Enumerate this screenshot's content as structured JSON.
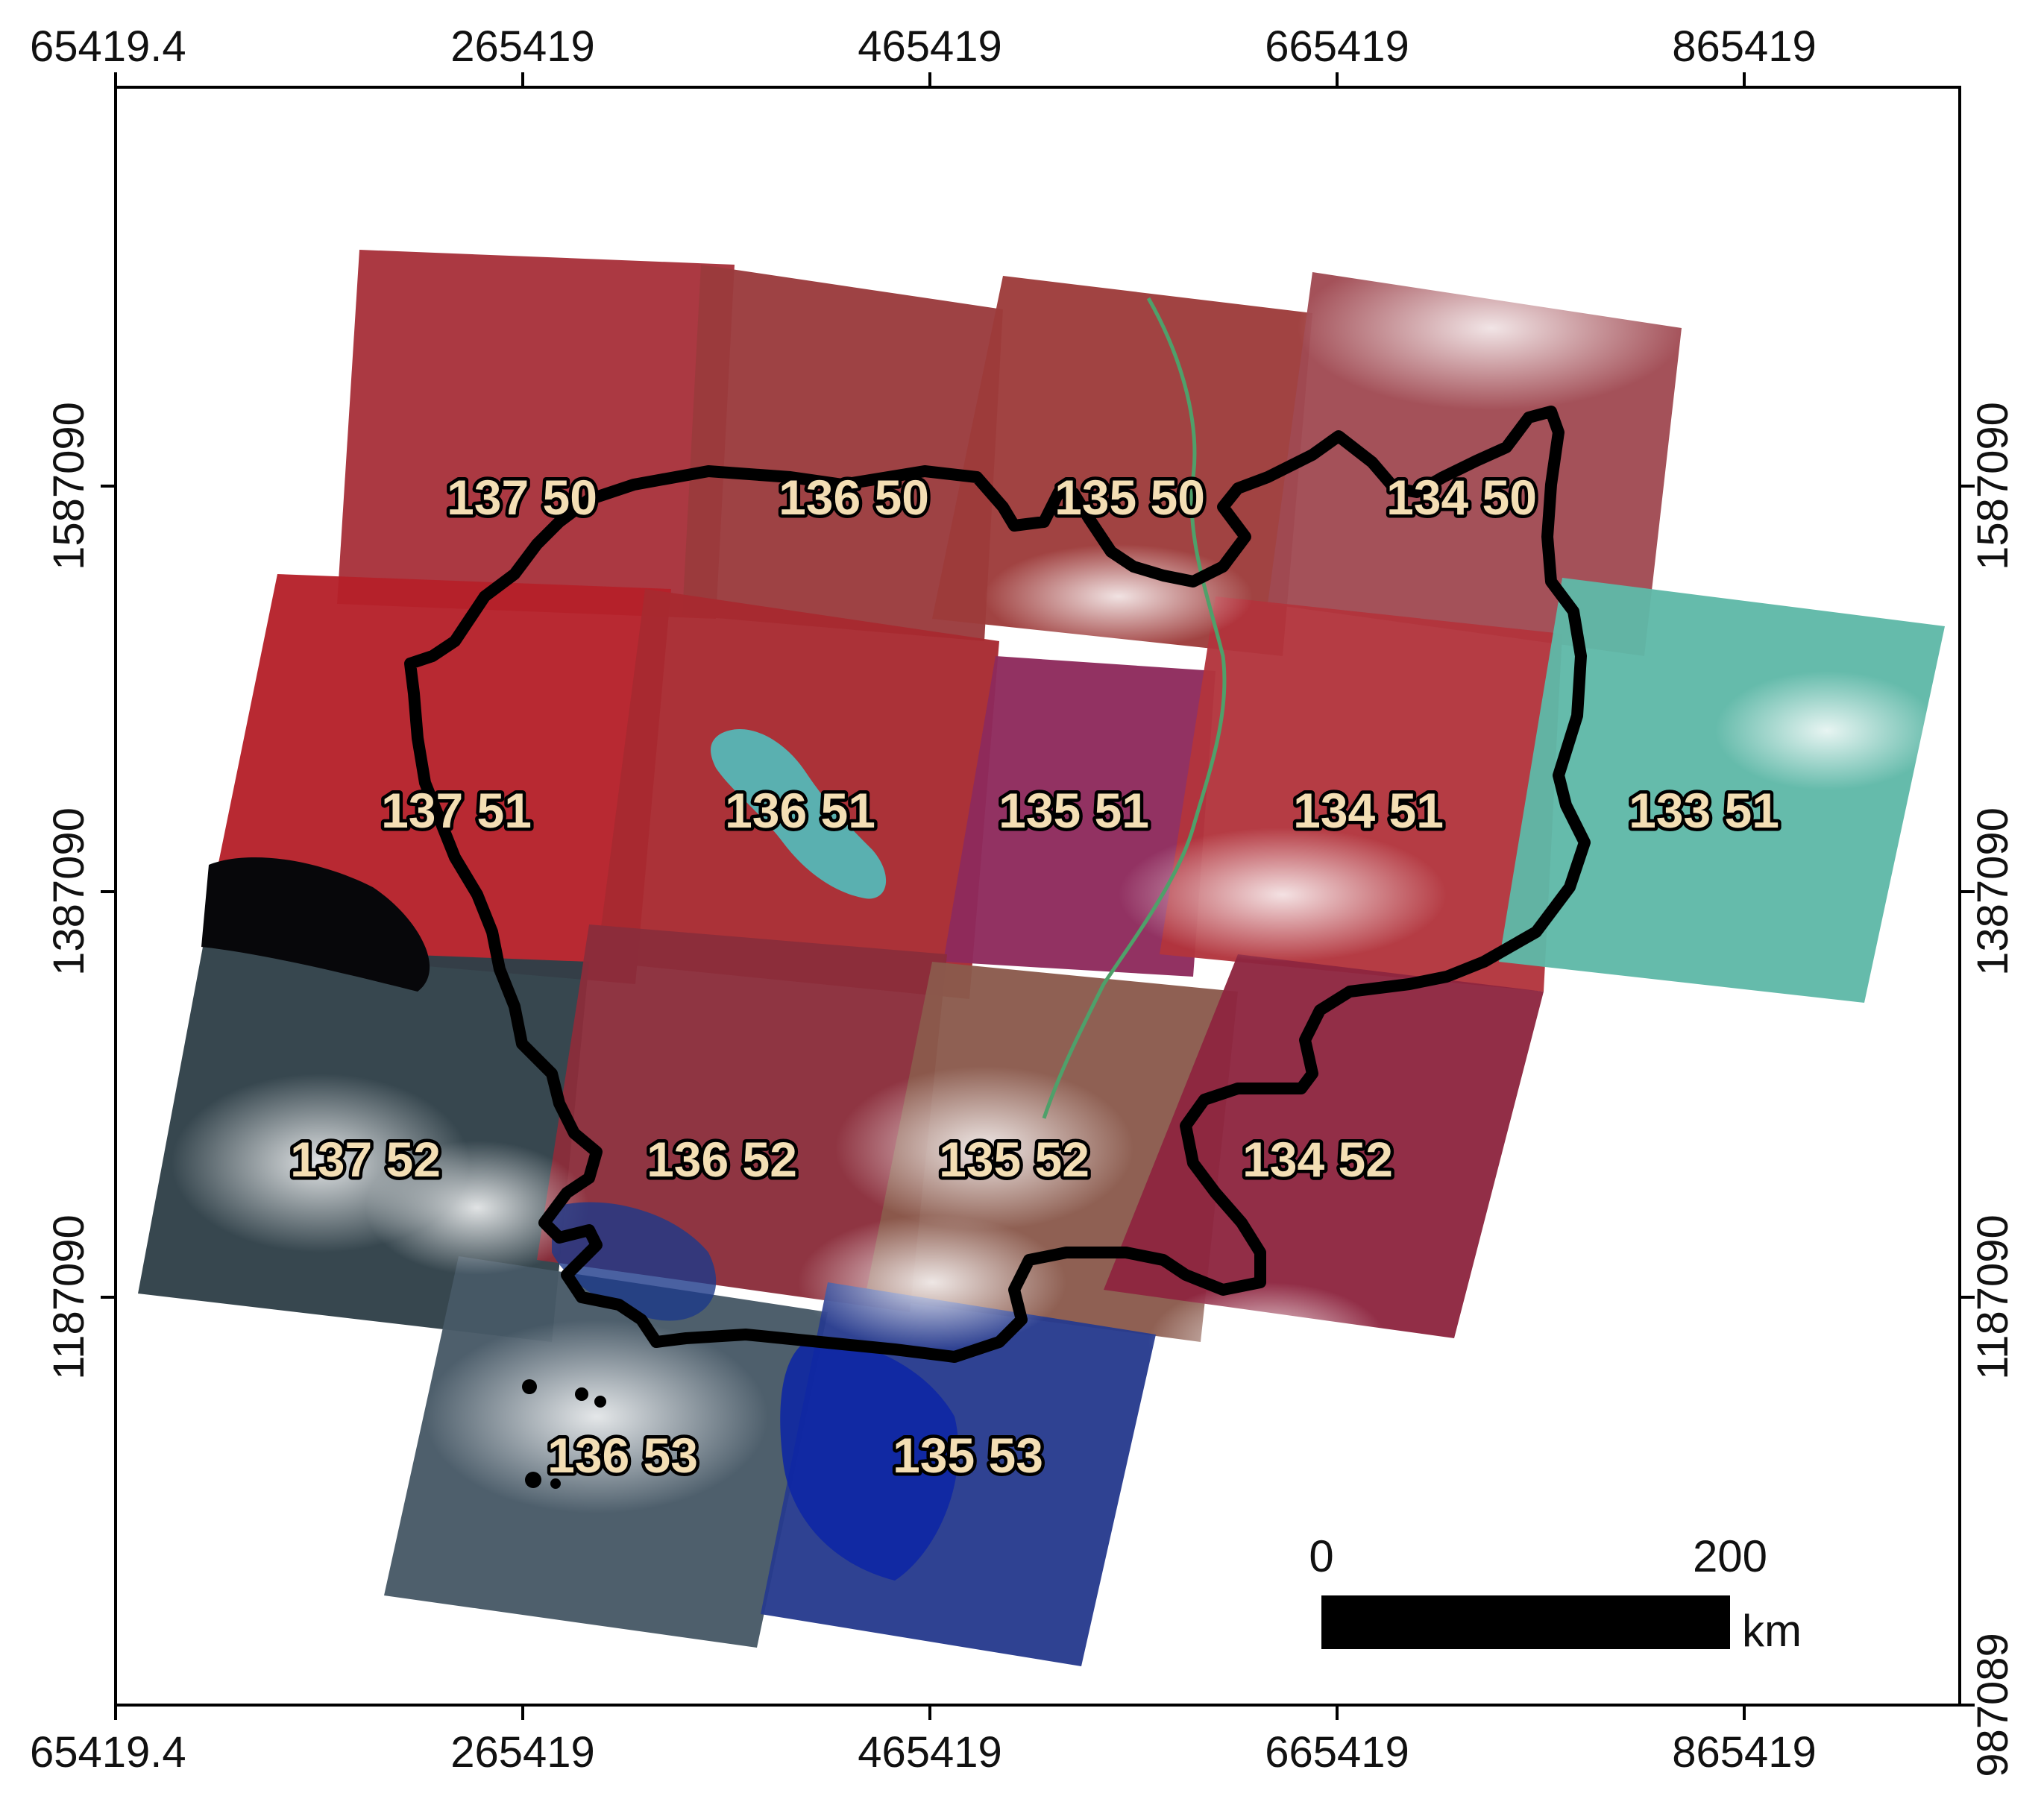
{
  "map": {
    "x_ticks": [
      "65419.4",
      "265419",
      "465419",
      "665419",
      "865419"
    ],
    "y_ticks": [
      "1587090",
      "1387090",
      "1187090"
    ],
    "y_tick_bottom_right": "987089",
    "scenes": [
      {
        "label": "137 50",
        "color": "#a8313a"
      },
      {
        "label": "136 50",
        "color": "#9a3a3c"
      },
      {
        "label": "135 50",
        "color": "#9d3b3a"
      },
      {
        "label": "134 50",
        "color": "#a04a52"
      },
      {
        "label": "137 51",
        "color": "#b5202a"
      },
      {
        "label": "136 51",
        "color": "#a82a30"
      },
      {
        "label": "135 51",
        "color": "#8e2a5c"
      },
      {
        "label": "134 51",
        "color": "#b2343c"
      },
      {
        "label": "133 51",
        "color": "#5fb8a8"
      },
      {
        "label": "137 52",
        "color": "#2f4048"
      },
      {
        "label": "136 52",
        "color": "#8a2d3a"
      },
      {
        "label": "135 52",
        "color": "#8a5a4c"
      },
      {
        "label": "134 52",
        "color": "#8e2540"
      },
      {
        "label": "136 53",
        "color": "#475866"
      },
      {
        "label": "135 53",
        "color": "#263a8e"
      }
    ],
    "scale_bar": {
      "start_label": "0",
      "end_label": "200",
      "unit": "km"
    },
    "lake_color": "#5ab0b0",
    "boundary_color": "#000000"
  }
}
